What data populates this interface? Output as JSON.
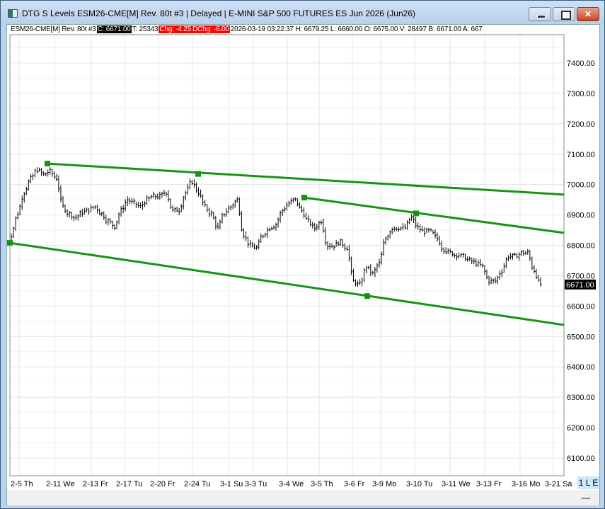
{
  "window": {
    "title": "DTG S Levels ESM26-CME[M]  Rev. 80t #3 | Delayed | E-MINI S&P 500 FUTURES ES Jun 2026 (Jun26)",
    "close_label": "✕"
  },
  "infobar": {
    "symbol": "ESM26-CME[M]  Rev. 80t #3",
    "close": "C: 6671.00",
    "ticks": "T: 25343",
    "chg": "Chg: -4.25",
    "dchg": "DChg: -6.00",
    "rest": "2026-03-19 03:22:37 H: 6679.25 L: 6660.00 O: 6675.00 V: 28497 B: 6671.00 A: 667"
  },
  "status": {
    "le": "1 L E"
  },
  "colors": {
    "trendline": "#179317",
    "bars": "#000000",
    "grid": "#e4e4e4",
    "down": "#ff0000"
  },
  "chart_data": {
    "type": "bar",
    "subtype": "ohlc",
    "ylim": [
      6050,
      7480
    ],
    "yticks": [
      7400,
      7300,
      7200,
      7100,
      7000,
      6900,
      6800,
      6700,
      6600,
      6500,
      6400,
      6300,
      6200,
      6100
    ],
    "ytick_labels": [
      "7400.00",
      "7300.00",
      "7200.00",
      "7100.00",
      "7000.00",
      "6900.00",
      "6800.00",
      "6700.00",
      "6600.00",
      "6500.00",
      "6400.00",
      "6300.00",
      "6200.00",
      "6100.00"
    ],
    "last_price_label": "6671.00",
    "last_price": 6671,
    "xtick_labels": [
      "2-5 Th",
      "2-11 We",
      "2-13 Fr",
      "2-17 Tu",
      "2-20 Fr",
      "2-24 Tu",
      "3-1 Su",
      "3-3 Tu",
      "3-4 We",
      "3-5 Th",
      "3-6 Fr",
      "3-9 Mo",
      "3-10 Tu",
      "3-11 We",
      "3-13 Fr",
      "3-16 Mo",
      "3-21 Sa"
    ],
    "closes": [
      6834,
      6904,
      6974,
      7020,
      7048,
      7032,
      7044,
      7020,
      6927,
      6904,
      6892,
      6908,
      6915,
      6927,
      6904,
      6880,
      6862,
      6915,
      6950,
      6939,
      6927,
      6950,
      6962,
      6962,
      6974,
      6915,
      6915,
      6974,
      7009,
      6974,
      6927,
      6904,
      6857,
      6904,
      6927,
      6950,
      6834,
      6799,
      6792,
      6834,
      6857,
      6869,
      6915,
      6939,
      6950,
      6915,
      6880,
      6857,
      6880,
      6799,
      6799,
      6811,
      6792,
      6682,
      6671,
      6729,
      6706,
      6741,
      6822,
      6857,
      6857,
      6857,
      6892,
      6857,
      6845,
      6845,
      6822,
      6787,
      6776,
      6769,
      6764,
      6752,
      6741,
      6729,
      6682,
      6682,
      6717,
      6764,
      6764,
      6776,
      6776,
      6717,
      6671
    ],
    "trendlines": [
      {
        "from": 6808,
        "to": 6538
      },
      {
        "from": 7069,
        "to": 6967
      },
      {
        "from": 6957,
        "to": 6841
      }
    ],
    "pivot_markers": [
      6808,
      7069,
      7035,
      6957,
      6905,
      6633
    ]
  }
}
